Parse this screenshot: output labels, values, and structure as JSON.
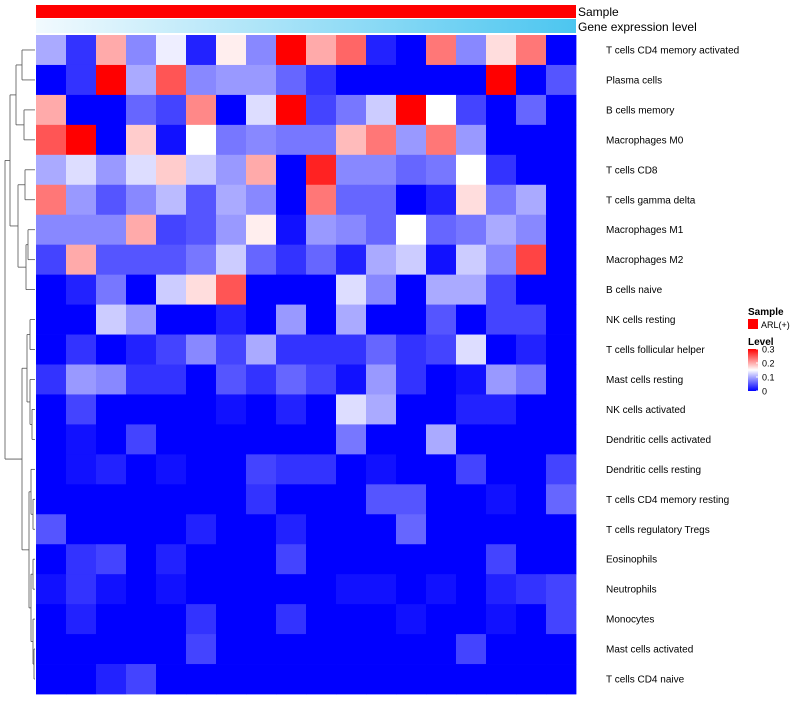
{
  "chart_data": {
    "type": "heatmap",
    "annotation_rows": [
      {
        "label": "Sample",
        "color": "#ff0000"
      },
      {
        "label": "Gene expression level",
        "gradient_start": "#f2fafe",
        "gradient_end": "#4cc6f0"
      }
    ],
    "row_labels": [
      "T cells CD4 memory activated",
      "Plasma cells",
      "B cells memory",
      "Macrophages M0",
      "T cells CD8",
      "T cells gamma delta",
      "Macrophages M1",
      "Macrophages M2",
      "B cells naive",
      "NK cells resting",
      "T cells follicular helper",
      "Mast cells resting",
      "NK cells activated",
      "Dendritic cells activated",
      "Dendritic cells resting",
      "T cells CD4 memory resting",
      "T cells regulatory  Tregs",
      "Eosinophils",
      "Neutrophils",
      "Monocytes",
      "Mast cells activated",
      "T cells CD4 naive"
    ],
    "n_columns": 18,
    "values": [
      [
        0.1,
        0.03,
        0.2,
        0.08,
        0.14,
        0.02,
        0.16,
        0.08,
        0.3,
        0.2,
        0.24,
        0.02,
        0.0,
        0.23,
        0.08,
        0.17,
        0.23,
        0.0
      ],
      [
        0.0,
        0.03,
        0.3,
        0.1,
        0.25,
        0.08,
        0.09,
        0.09,
        0.06,
        0.03,
        0.0,
        0.0,
        0.0,
        0.0,
        0.0,
        0.3,
        0.0,
        0.05
      ],
      [
        0.2,
        0.0,
        0.0,
        0.06,
        0.04,
        0.22,
        0.0,
        0.13,
        0.3,
        0.04,
        0.07,
        0.12,
        0.3,
        0.15,
        0.04,
        0.0,
        0.06,
        0.0
      ],
      [
        0.25,
        0.3,
        0.0,
        0.18,
        0.01,
        0.15,
        0.07,
        0.08,
        0.07,
        0.07,
        0.19,
        0.23,
        0.09,
        0.23,
        0.09,
        0.0,
        0.0,
        0.0
      ],
      [
        0.1,
        0.13,
        0.09,
        0.13,
        0.18,
        0.12,
        0.09,
        0.2,
        0.0,
        0.28,
        0.08,
        0.08,
        0.06,
        0.07,
        0.15,
        0.03,
        0.0,
        0.0
      ],
      [
        0.23,
        0.09,
        0.05,
        0.08,
        0.11,
        0.05,
        0.1,
        0.08,
        0.0,
        0.23,
        0.06,
        0.06,
        0.0,
        0.02,
        0.17,
        0.07,
        0.1,
        0.0
      ],
      [
        0.08,
        0.08,
        0.08,
        0.2,
        0.04,
        0.05,
        0.09,
        0.16,
        0.01,
        0.09,
        0.08,
        0.06,
        0.15,
        0.06,
        0.07,
        0.1,
        0.08,
        0.0
      ],
      [
        0.04,
        0.2,
        0.05,
        0.05,
        0.05,
        0.07,
        0.12,
        0.06,
        0.03,
        0.06,
        0.02,
        0.1,
        0.12,
        0.01,
        0.12,
        0.08,
        0.26,
        0.0
      ],
      [
        0.0,
        0.02,
        0.07,
        0.0,
        0.12,
        0.17,
        0.25,
        0.0,
        0.0,
        0.0,
        0.13,
        0.08,
        0.0,
        0.1,
        0.1,
        0.04,
        0.0,
        0.0
      ],
      [
        0.0,
        0.0,
        0.12,
        0.09,
        0.0,
        0.0,
        0.02,
        0.0,
        0.09,
        0.0,
        0.1,
        0.0,
        0.0,
        0.05,
        0.0,
        0.04,
        0.04,
        0.0
      ],
      [
        0.0,
        0.03,
        0.0,
        0.02,
        0.04,
        0.08,
        0.04,
        0.1,
        0.03,
        0.03,
        0.03,
        0.06,
        0.03,
        0.04,
        0.13,
        0.0,
        0.02,
        0.0
      ],
      [
        0.03,
        0.09,
        0.08,
        0.03,
        0.03,
        0.0,
        0.05,
        0.03,
        0.06,
        0.04,
        0.01,
        0.09,
        0.03,
        0.0,
        0.01,
        0.09,
        0.07,
        0.0
      ],
      [
        0.0,
        0.04,
        0.0,
        0.0,
        0.0,
        0.0,
        0.01,
        0.0,
        0.02,
        0.0,
        0.13,
        0.1,
        0.0,
        0.0,
        0.02,
        0.02,
        0.0,
        0.0
      ],
      [
        0.0,
        0.01,
        0.0,
        0.04,
        0.0,
        0.0,
        0.0,
        0.0,
        0.0,
        0.0,
        0.07,
        0.0,
        0.0,
        0.1,
        0.0,
        0.0,
        0.0,
        0.0
      ],
      [
        0.0,
        0.01,
        0.02,
        0.0,
        0.01,
        0.0,
        0.0,
        0.04,
        0.03,
        0.03,
        0.0,
        0.01,
        0.0,
        0.0,
        0.04,
        0.0,
        0.0,
        0.04
      ],
      [
        0.0,
        0.0,
        0.0,
        0.0,
        0.0,
        0.0,
        0.0,
        0.03,
        0.0,
        0.0,
        0.0,
        0.05,
        0.05,
        0.0,
        0.0,
        0.01,
        0.0,
        0.06
      ],
      [
        0.05,
        0.0,
        0.0,
        0.0,
        0.0,
        0.02,
        0.0,
        0.0,
        0.02,
        0.0,
        0.0,
        0.0,
        0.06,
        0.0,
        0.0,
        0.0,
        0.0,
        0.0
      ],
      [
        0.0,
        0.03,
        0.04,
        0.0,
        0.02,
        0.0,
        0.0,
        0.0,
        0.04,
        0.0,
        0.0,
        0.0,
        0.0,
        0.0,
        0.0,
        0.04,
        0.0,
        0.0
      ],
      [
        0.01,
        0.03,
        0.01,
        0.0,
        0.01,
        0.0,
        0.0,
        0.0,
        0.0,
        0.0,
        0.01,
        0.01,
        0.0,
        0.01,
        0.0,
        0.02,
        0.03,
        0.04
      ],
      [
        0.0,
        0.02,
        0.0,
        0.0,
        0.0,
        0.03,
        0.0,
        0.0,
        0.03,
        0.0,
        0.0,
        0.0,
        0.01,
        0.0,
        0.0,
        0.01,
        0.0,
        0.04
      ],
      [
        0.0,
        0.0,
        0.0,
        0.0,
        0.0,
        0.04,
        0.0,
        0.0,
        0.0,
        0.0,
        0.0,
        0.0,
        0.0,
        0.0,
        0.04,
        0.0,
        0.0,
        0.0
      ],
      [
        0.0,
        0.0,
        0.02,
        0.04,
        0.0,
        0.0,
        0.0,
        0.0,
        0.0,
        0.0,
        0.0,
        0.0,
        0.0,
        0.0,
        0.0,
        0.0,
        0.0,
        0.0
      ]
    ],
    "color_scale": {
      "low": "#0000ff",
      "mid": "#ffffff",
      "high": "#ff0000",
      "min": 0,
      "mid_value": 0.15,
      "max": 0.3
    },
    "legend": {
      "sample_title": "Sample",
      "sample_entry": "ARL(+)",
      "sample_color": "#ff0000",
      "level_title": "Level",
      "level_ticks": [
        "0.3",
        "0.2",
        "0.1",
        "0"
      ],
      "level_tick_values": [
        0.3,
        0.2,
        0.1,
        0
      ]
    },
    "row_dendrogram": true
  }
}
